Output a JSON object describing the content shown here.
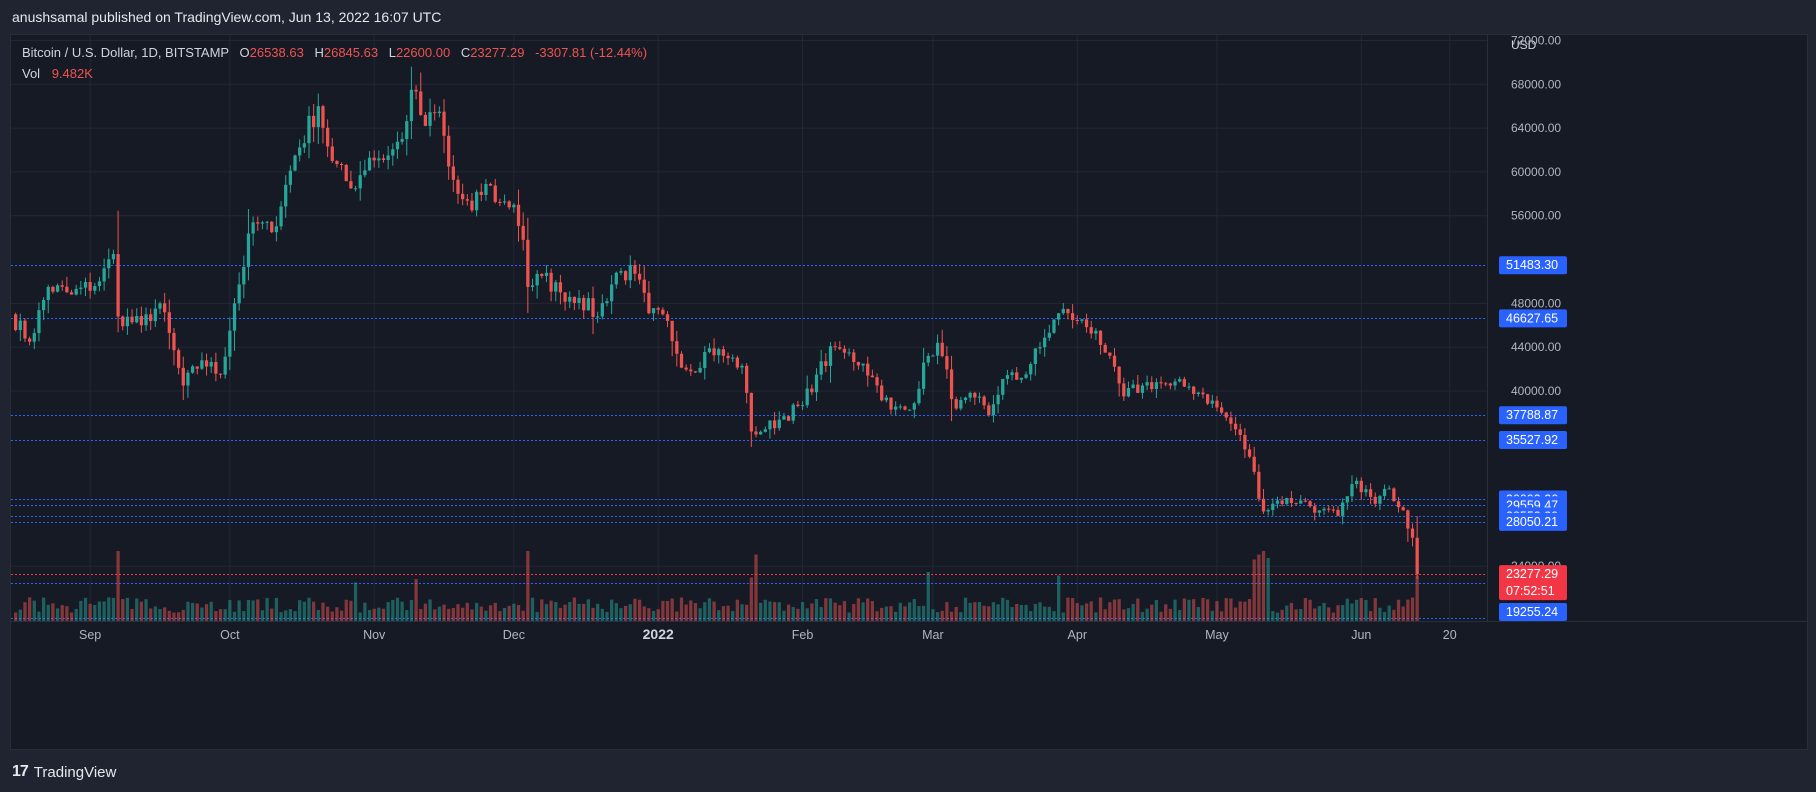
{
  "header": {
    "published_line": "anushsamal published on TradingView.com, Jun 13, 2022 16:07 UTC"
  },
  "legend": {
    "symbol": "Bitcoin / U.S. Dollar, 1D, BITSTAMP",
    "open_label": "O",
    "open": "26538.63",
    "high_label": "H",
    "high": "26845.63",
    "low_label": "L",
    "low": "22600.00",
    "close_label": "C",
    "close": "23277.29",
    "change": "-3307.81 (-12.44%)",
    "vol_label": "Vol",
    "vol": "9.482K"
  },
  "footer": {
    "brand": "TradingView",
    "logo": "17"
  },
  "colors": {
    "up": "#26a69a",
    "down": "#ef5350",
    "line_blue": "#2962ff",
    "label_blue": "#2962ff",
    "label_red": "#f23645",
    "grid": "#232734"
  },
  "chart_data": {
    "type": "candlestick",
    "title": "Bitcoin / U.S. Dollar, 1D, BITSTAMP",
    "currency_label": "USD",
    "ylim": [
      19000,
      72500
    ],
    "y_ticks": [
      72000,
      68000,
      64000,
      60000,
      56000,
      48000,
      44000,
      40000,
      24000
    ],
    "y_tick_labels": [
      "72000.00",
      "68000.00",
      "64000.00",
      "60000.00",
      "56000.00",
      "48000.00",
      "44000.00",
      "40000.00",
      "24000.00"
    ],
    "x_ticks": [
      {
        "label": "Sep",
        "date": "2021-09-01"
      },
      {
        "label": "Oct",
        "date": "2021-10-01"
      },
      {
        "label": "Nov",
        "date": "2021-11-01"
      },
      {
        "label": "Dec",
        "date": "2021-12-01"
      },
      {
        "label": "2022",
        "date": "2022-01-01",
        "bold": true
      },
      {
        "label": "Feb",
        "date": "2022-02-01"
      },
      {
        "label": "Mar",
        "date": "2022-03-01"
      },
      {
        "label": "Apr",
        "date": "2022-04-01"
      },
      {
        "label": "May",
        "date": "2022-05-01"
      },
      {
        "label": "Jun",
        "date": "2022-06-01"
      },
      {
        "label": "20",
        "date": "2022-06-20"
      }
    ],
    "x_range": [
      "2021-08-15",
      "2022-06-28"
    ],
    "horizontal_lines": [
      51483.3,
      46627.65,
      37788.87,
      35527.92,
      30093.26,
      29559.47,
      28553.3,
      28050.21,
      22431.17,
      19255.24
    ],
    "price_labels": [
      {
        "value": 51483.3,
        "text": "51483.30",
        "kind": "blue"
      },
      {
        "value": 46627.65,
        "text": "46627.65",
        "kind": "blue"
      },
      {
        "value": 37788.87,
        "text": "37788.87",
        "kind": "blue"
      },
      {
        "value": 35527.92,
        "text": "35527.92",
        "kind": "blue"
      },
      {
        "value": 30093.26,
        "text": "30093.26",
        "kind": "blue"
      },
      {
        "value": 29559.47,
        "text": "29559.47",
        "kind": "blue"
      },
      {
        "value": 28553.3,
        "text": "28553.30",
        "kind": "blue"
      },
      {
        "value": 28050.21,
        "text": "28050.21",
        "kind": "blue"
      },
      {
        "value": 22431.17,
        "text": "22431.17",
        "kind": "blue"
      },
      {
        "value": 19255.24,
        "text": "19255.24",
        "kind": "blue"
      }
    ],
    "last_price": {
      "value": 23277.29,
      "text": "23277.29",
      "countdown": "07:52:51"
    },
    "close_anchors": [
      [
        "2021-08-15",
        47000
      ],
      [
        "2021-08-19",
        44500
      ],
      [
        "2021-08-23",
        49500
      ],
      [
        "2021-08-28",
        48800
      ],
      [
        "2021-09-03",
        50000
      ],
      [
        "2021-09-06",
        52500
      ],
      [
        "2021-09-07",
        46800
      ],
      [
        "2021-09-12",
        46000
      ],
      [
        "2021-09-16",
        48000
      ],
      [
        "2021-09-21",
        40500
      ],
      [
        "2021-09-25",
        42800
      ],
      [
        "2021-09-29",
        41500
      ],
      [
        "2021-10-02",
        48000
      ],
      [
        "2021-10-06",
        55400
      ],
      [
        "2021-10-10",
        54500
      ],
      [
        "2021-10-15",
        61500
      ],
      [
        "2021-10-20",
        66000
      ],
      [
        "2021-10-23",
        61000
      ],
      [
        "2021-10-27",
        58500
      ],
      [
        "2021-10-31",
        61300
      ],
      [
        "2021-11-04",
        61500
      ],
      [
        "2021-11-07",
        63000
      ],
      [
        "2021-11-09",
        67500
      ],
      [
        "2021-11-12",
        64200
      ],
      [
        "2021-11-15",
        65500
      ],
      [
        "2021-11-17",
        60500
      ],
      [
        "2021-11-19",
        58000
      ],
      [
        "2021-11-22",
        56500
      ],
      [
        "2021-11-25",
        58900
      ],
      [
        "2021-11-28",
        57200
      ],
      [
        "2021-12-01",
        57000
      ],
      [
        "2021-12-03",
        53800
      ],
      [
        "2021-12-04",
        49500
      ],
      [
        "2021-12-07",
        50500
      ],
      [
        "2021-12-11",
        49000
      ],
      [
        "2021-12-15",
        48500
      ],
      [
        "2021-12-19",
        46800
      ],
      [
        "2021-12-23",
        50800
      ],
      [
        "2021-12-27",
        50700
      ],
      [
        "2021-12-30",
        47100
      ],
      [
        "2022-01-03",
        46400
      ],
      [
        "2022-01-05",
        43400
      ],
      [
        "2022-01-08",
        41800
      ],
      [
        "2022-01-12",
        43900
      ],
      [
        "2022-01-16",
        43000
      ],
      [
        "2022-01-19",
        42300
      ],
      [
        "2022-01-21",
        36300
      ],
      [
        "2022-01-24",
        36500
      ],
      [
        "2022-01-28",
        37700
      ],
      [
        "2022-02-01",
        38700
      ],
      [
        "2022-02-04",
        41500
      ],
      [
        "2022-02-08",
        44000
      ],
      [
        "2022-02-10",
        43500
      ],
      [
        "2022-02-14",
        42500
      ],
      [
        "2022-02-17",
        40500
      ],
      [
        "2022-02-20",
        38300
      ],
      [
        "2022-02-24",
        38300
      ],
      [
        "2022-02-28",
        43200
      ],
      [
        "2022-03-02",
        44400
      ],
      [
        "2022-03-06",
        38400
      ],
      [
        "2022-03-10",
        39400
      ],
      [
        "2022-03-13",
        37800
      ],
      [
        "2022-03-16",
        41100
      ],
      [
        "2022-03-20",
        41200
      ],
      [
        "2022-03-24",
        44000
      ],
      [
        "2022-03-28",
        47100
      ],
      [
        "2022-03-30",
        47100
      ],
      [
        "2022-04-01",
        46400
      ],
      [
        "2022-04-05",
        45500
      ],
      [
        "2022-04-07",
        43500
      ],
      [
        "2022-04-11",
        39500
      ],
      [
        "2022-04-15",
        40500
      ],
      [
        "2022-04-18",
        40800
      ],
      [
        "2022-04-21",
        40500
      ],
      [
        "2022-04-25",
        40400
      ],
      [
        "2022-04-28",
        39700
      ],
      [
        "2022-05-01",
        38500
      ],
      [
        "2022-05-05",
        36500
      ],
      [
        "2022-05-08",
        34000
      ],
      [
        "2022-05-11",
        29000
      ],
      [
        "2022-05-14",
        30000
      ],
      [
        "2022-05-19",
        30000
      ],
      [
        "2022-05-23",
        29100
      ],
      [
        "2022-05-27",
        28600
      ],
      [
        "2022-05-31",
        31800
      ],
      [
        "2022-06-04",
        29700
      ],
      [
        "2022-06-07",
        31100
      ],
      [
        "2022-06-10",
        29100
      ],
      [
        "2022-06-12",
        26600
      ],
      [
        "2022-06-13",
        23277
      ]
    ],
    "volume_spikes": [
      [
        "2021-09-07",
        1.0
      ],
      [
        "2021-10-28",
        0.55
      ],
      [
        "2021-11-10",
        0.6
      ],
      [
        "2021-12-04",
        1.0
      ],
      [
        "2022-01-21",
        0.62
      ],
      [
        "2022-01-22",
        0.95
      ],
      [
        "2022-02-28",
        0.7
      ],
      [
        "2022-03-28",
        0.65
      ],
      [
        "2022-05-09",
        0.88
      ],
      [
        "2022-05-10",
        0.95
      ],
      [
        "2022-05-11",
        1.0
      ],
      [
        "2022-05-12",
        0.9
      ],
      [
        "2022-06-13",
        0.65
      ]
    ]
  }
}
